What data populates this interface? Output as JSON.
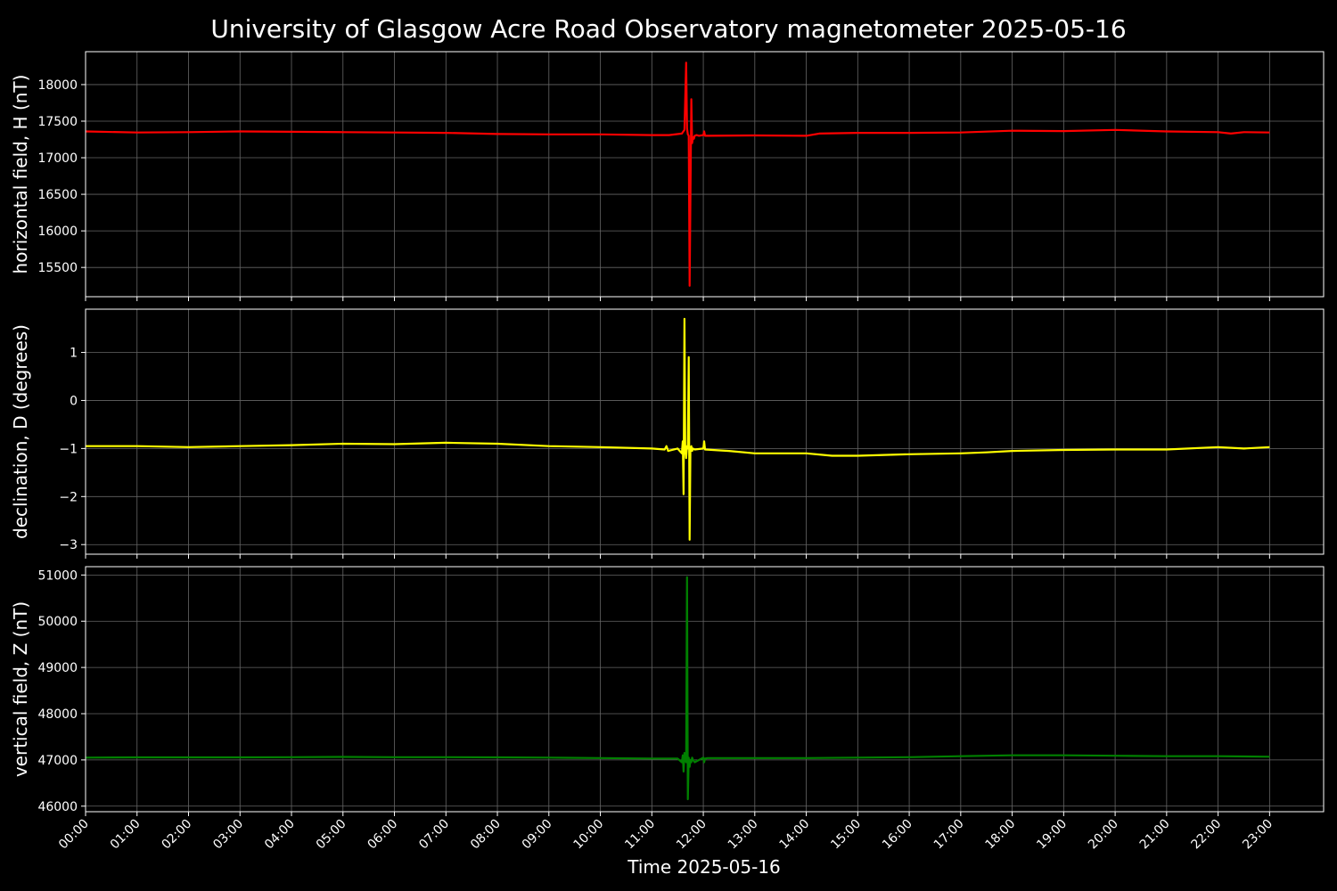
{
  "chart_data": {
    "type": "line",
    "title": "University of Glasgow Acre Road Observatory magnetometer 2025-05-16",
    "xlabel": "Time 2025-05-16",
    "x_ticks": [
      "00:00",
      "01:00",
      "02:00",
      "03:00",
      "04:00",
      "05:00",
      "06:00",
      "07:00",
      "08:00",
      "09:00",
      "10:00",
      "11:00",
      "12:00",
      "13:00",
      "14:00",
      "15:00",
      "16:00",
      "17:00",
      "18:00",
      "19:00",
      "20:00",
      "21:00",
      "22:00",
      "23:00"
    ],
    "xlim_hours": [
      0,
      24.05
    ],
    "grid": true,
    "panels": [
      {
        "ylabel": "horizontal field, H (nT)",
        "color": "#ff0000",
        "ylim": [
          15100,
          18450
        ],
        "yticks": [
          15500,
          16000,
          16500,
          17000,
          17500,
          18000
        ],
        "series": {
          "x": [
            "00:00",
            "01:00",
            "02:00",
            "03:00",
            "04:00",
            "05:00",
            "06:00",
            "07:00",
            "08:00",
            "09:00",
            "10:00",
            "11:00",
            "11:20",
            "11:35",
            "11:38",
            "11:40",
            "11:41",
            "11:42",
            "11:43",
            "11:44",
            "11:46",
            "11:47",
            "11:48",
            "11:49",
            "11:50",
            "11:52",
            "11:55",
            "12:00",
            "12:01",
            "12:02",
            "12:05",
            "13:00",
            "14:00",
            "14:15",
            "15:00",
            "16:00",
            "17:00",
            "18:00",
            "19:00",
            "20:00",
            "21:00",
            "22:00",
            "22:15",
            "22:30",
            "23:00"
          ],
          "y": [
            17360,
            17345,
            17350,
            17360,
            17355,
            17350,
            17345,
            17340,
            17325,
            17320,
            17320,
            17310,
            17310,
            17330,
            17380,
            18300,
            17400,
            17320,
            17300,
            15250,
            17800,
            17200,
            17280,
            17260,
            17300,
            17310,
            17300,
            17310,
            17360,
            17300,
            17300,
            17305,
            17300,
            17330,
            17340,
            17340,
            17345,
            17370,
            17365,
            17380,
            17360,
            17350,
            17330,
            17350,
            17345
          ]
        }
      },
      {
        "ylabel": "declination, D (degrees)",
        "color": "#ffff00",
        "ylim": [
          -3.2,
          1.9
        ],
        "yticks": [
          -3,
          -2,
          -1,
          0,
          1
        ],
        "series": {
          "x": [
            "00:00",
            "01:00",
            "02:00",
            "03:00",
            "04:00",
            "05:00",
            "06:00",
            "07:00",
            "08:00",
            "09:00",
            "10:00",
            "11:00",
            "11:15",
            "11:17",
            "11:19",
            "11:30",
            "11:35",
            "11:36",
            "11:37",
            "11:38",
            "11:39",
            "11:40",
            "11:41",
            "11:42",
            "11:43",
            "11:44",
            "11:45",
            "11:46",
            "11:47",
            "11:48",
            "11:50",
            "12:00",
            "12:01",
            "12:02",
            "12:30",
            "13:00",
            "14:00",
            "14:30",
            "15:00",
            "16:00",
            "17:00",
            "17:30",
            "18:00",
            "19:00",
            "20:00",
            "21:00",
            "22:00",
            "22:30",
            "23:00"
          ],
          "y": [
            -0.95,
            -0.95,
            -0.97,
            -0.95,
            -0.93,
            -0.9,
            -0.91,
            -0.88,
            -0.9,
            -0.95,
            -0.97,
            -1.0,
            -1.02,
            -0.95,
            -1.05,
            -1.0,
            -1.1,
            -0.85,
            -1.95,
            1.7,
            -1.0,
            -1.2,
            -0.95,
            -1.0,
            0.9,
            -2.9,
            -1.0,
            -0.95,
            -1.05,
            -1.0,
            -1.02,
            -1.0,
            -0.85,
            -1.02,
            -1.05,
            -1.1,
            -1.1,
            -1.15,
            -1.15,
            -1.12,
            -1.1,
            -1.08,
            -1.05,
            -1.03,
            -1.02,
            -1.02,
            -0.97,
            -1.0,
            -0.97
          ]
        }
      },
      {
        "ylabel": "vertical field, Z (nT)",
        "color": "#008000",
        "ylim": [
          45880,
          51180
        ],
        "yticks": [
          46000,
          47000,
          48000,
          49000,
          50000,
          51000
        ],
        "series": {
          "x": [
            "00:00",
            "01:00",
            "02:00",
            "03:00",
            "04:00",
            "05:00",
            "06:00",
            "07:00",
            "08:00",
            "09:00",
            "10:00",
            "11:00",
            "11:30",
            "11:35",
            "11:36",
            "11:37",
            "11:38",
            "11:39",
            "11:40",
            "11:41",
            "11:42",
            "11:43",
            "11:44",
            "11:45",
            "11:46",
            "11:47",
            "11:48",
            "11:50",
            "12:00",
            "12:01",
            "12:02",
            "12:05",
            "13:00",
            "14:00",
            "15:00",
            "16:00",
            "17:00",
            "18:00",
            "19:00",
            "20:00",
            "21:00",
            "22:00",
            "23:00"
          ],
          "y": [
            47050,
            47055,
            47055,
            47055,
            47060,
            47065,
            47060,
            47060,
            47055,
            47050,
            47040,
            47030,
            47030,
            46950,
            47100,
            46750,
            47150,
            47000,
            46950,
            50950,
            46150,
            47050,
            46850,
            47000,
            46950,
            47050,
            47000,
            46950,
            47050,
            46950,
            47030,
            47040,
            47040,
            47040,
            47050,
            47060,
            47080,
            47100,
            47100,
            47090,
            47080,
            47080,
            47070
          ]
        }
      }
    ]
  }
}
